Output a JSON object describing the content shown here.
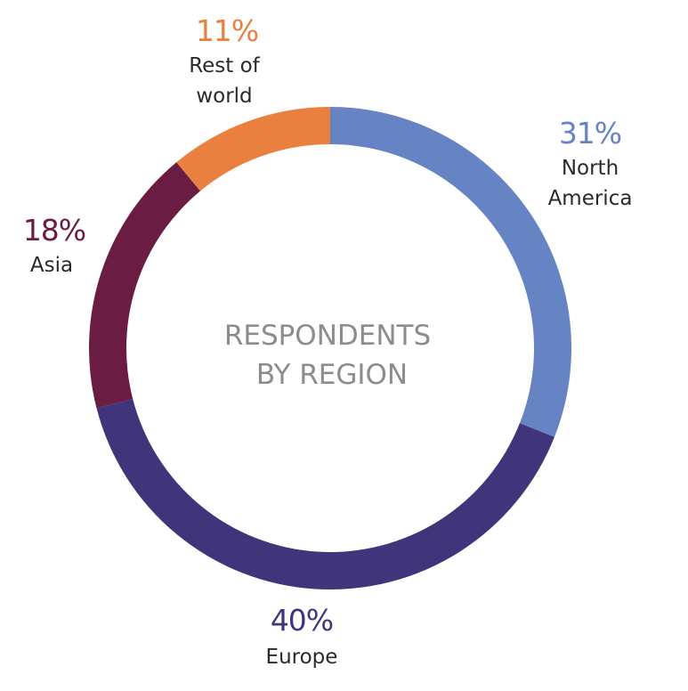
{
  "chart_data": {
    "type": "pie",
    "title": [
      "RESPONDENTS",
      "BY REGION"
    ],
    "slices": [
      {
        "label": [
          "North",
          "America"
        ],
        "value": 31,
        "value_label": "31%",
        "color": "#6684c3"
      },
      {
        "label": [
          "Europe"
        ],
        "value": 40,
        "value_label": "40%",
        "color": "#40347a"
      },
      {
        "label": [
          "Asia"
        ],
        "value": 18,
        "value_label": "18%",
        "color": "#6b1c42"
      },
      {
        "label": [
          "Rest of",
          "world"
        ],
        "value": 11,
        "value_label": "11%",
        "color": "#e98040"
      }
    ]
  }
}
